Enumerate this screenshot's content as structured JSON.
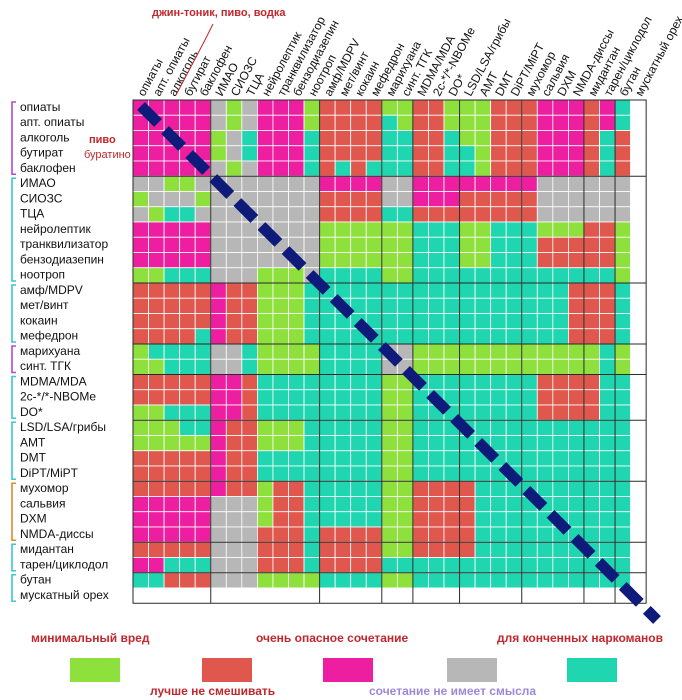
{
  "chart_data": {
    "type": "heatmap",
    "annotations": {
      "top": "джин-тоник, пиво, водка",
      "alcohol_note": "пиво",
      "butyrate_note": "буратино"
    },
    "rows": [
      "опиаты",
      "апт. опиаты",
      "алкоголь",
      "бутират",
      "баклофен",
      "ИМАО",
      "СИОЗС",
      "ТЦА",
      "нейролептик",
      "транквилизатор",
      "бензодиазепин",
      "ноотроп",
      "амф/MDPV",
      "мет/винт",
      "кокаин",
      "мефедрон",
      "марихуана",
      "синт. ТГК",
      "MDMA/MDA",
      "2с-*/*-NBOMe",
      "DO*",
      "LSD/LSA/грибы",
      "AMT",
      "DMT",
      "DiPT/MiPT",
      "мухомор",
      "сальвия",
      "DXM",
      "NMDA-диссы",
      "мидантан",
      "тарен/циклодол",
      "бутан",
      "мускатный орех"
    ],
    "columns": [
      "опиаты",
      "апт. опиаты",
      "алкоголь",
      "бутират",
      "баклофен",
      "ИМАО",
      "СИОЗС",
      "ТЦА",
      "нейролептик",
      "транквилизатор",
      "бензодиазепин",
      "ноотроп",
      "амф/MDPV",
      "мет/винт",
      "кокаин",
      "мефедрон",
      "марихуана",
      "синт. ТГК",
      "MDMA/MDA",
      "2с-*/*-NBOMe",
      "DO*",
      "LSD/LSA/грибы",
      "AMT",
      "DMT",
      "DiPT/MiPT",
      "мухомор",
      "сальвия",
      "DXM",
      "NMDA-диссы",
      "мидантан",
      "тарен/циклодол",
      "бутан",
      "мускатный орех"
    ],
    "group_breaks": [
      5,
      12,
      16,
      18,
      21,
      25,
      29,
      31
    ],
    "legend": [
      {
        "key": "G",
        "label": "минимальный вред",
        "color": "#8ee03c",
        "label_color": "#c1272d"
      },
      {
        "key": "R",
        "label": "лучше не смешивать",
        "color": "#e0584d",
        "label_color": "#c1272d"
      },
      {
        "key": "P",
        "label": "очень опасное сочетание",
        "color": "#ee1ea0",
        "label_color": "#c1272d"
      },
      {
        "key": "X",
        "label": "сочетание не имеет смысла",
        "color": "#b7b7b7",
        "label_color": "#9a8ad8"
      },
      {
        "key": "T",
        "label": "для конченных наркоманов",
        "color": "#1fd6b0",
        "label_color": "#c1272d"
      }
    ],
    "diagonal_color": "#0f1b7a",
    "matrix": [
      "PPPPPXGXPPPGRRRRGGRRGGGRRRPPPRPTW",
      "PPPPPXGXPPPGRRRRTGRRGGGRRRPPPRPTW",
      "PPPPPGXTPPPTRRRRTTRRTGGRRRPPPRTRW",
      "PPPPPGXTPPPTRRRRTTRRTTGRRRPPPRTRW",
      "PPPPPXGXPPPTRTRTTTRRTTGRRRPPPRTRW",
      "XXGGXXXXXXXXPPPPXXPPPPPPPPXXXXXXW",
      "GXXXGXXXXXXXRRRRXXPPPRRRRRXXXXXXW",
      "XGTTXXXXXXXXRRRRTTRRRRRRRRXXXXXXW",
      "PPPPPXXXXXXXGGGGGGTTTGGTTTGGGRRGW",
      "PPPPPXXXXXXXGGGGGGTTTGGTTTRRRRRGW",
      "PPPPPXXXXXXXGGGGGGTTTGGTTTRRRRRGW",
      "GGTTTXXXGGGXTTTTGGTTTTTTTTTTTTTGW",
      "RRRRRPRRGGGTTTTTTTTTTTTTTTTTRRRTW",
      "RRRRRPRRGGGTTTTTTTTTTTTTTTTTRRRTW",
      "RRRRRPRRGGGTTTTTTTTTTTTTTTTTRRRTW",
      "RRRRTPRRGGGTTTTTTTTTTTTTTTTTRRRTW",
      "GTTTTXXTGGGGTTTTXXGGGGGGGGGGGGTGW",
      "GGTTTXXTGGGGTTTTXXGGGGGGGGGGGGTGW",
      "RRRRRPPRTTTTTTTTGGTTTTTTTTRRRRTTW",
      "RRRRRPPRTTTTTTTTGGTTTTTTTTRRRRTTW",
      "GGTTTPPRTTTTTTTTGGTTTTTTTTRRRRTTW",
      "GGGTTPRRGGGTTTTTGGTTTTTTTTTTTTTTW",
      "GGGGGPRRGGGTTTTTGGTTTTTTTTTTTTTTW",
      "RRRRRPRRTTTTTTTTGGTTTTTTTTTTTTTTW",
      "RRRRRPRRTTTTTTTTGGTTTTTTTTTTTTTTW",
      "RRRRRPRRGRRTTTTTGGRRRRTTTTTTTTTTW",
      "PPPPPXXXGRRTTTTTGGRRRRTTTTTTTTTTW",
      "PPPPPXXXGRRTTTTTGGRRRRTTTTTTTTTTW",
      "PPPPPXXXRRRTRRRRGGRRRRTTTTTTTTTTW",
      "RRRRRXXXRRRTRRRRGGRRRRTTTTTTTTTTW",
      "PPTTTXXXRRRTRRRRTTTTTTTTTTTTTTTTW",
      "TTRRRXXXGGGGTTTTGGTTTTTTTTTTTTTTW",
      "WWWWWWWWWWWWWWWWWWWWWWWWWWWWWWWWW"
    ]
  }
}
